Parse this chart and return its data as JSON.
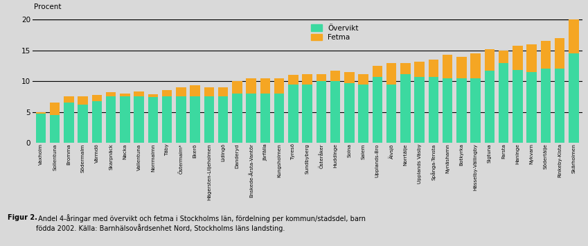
{
  "categories": [
    "Vaxholm",
    "Sollentuna",
    "Bromma",
    "Södermalm",
    "Värmdö",
    "Skarpnäck",
    "Nacka",
    "Vallentuna",
    "Norrmalmn",
    "Täby",
    "Östermalm*",
    "Ekerö",
    "Hägersten-Liljeholmen",
    "Lidingö",
    "Danderyd",
    "Enskede-Årsta-Vantör",
    "Järfälla",
    "Kungsholmen",
    "Tyresö",
    "Sundbyberg",
    "Österåker",
    "Huddinge",
    "Solna",
    "Salem",
    "Upplands-Bro",
    "Älvsjö",
    "Norrtälje",
    "Upplands Väsby",
    "Spånga-Tensta",
    "Nynäshamn",
    "Botkyrka",
    "Hässelby-Vällingby",
    "Sigtuna",
    "Farsta",
    "Haninge",
    "Nykvarn",
    "Södertälje",
    "Rinkeby-Kista",
    "Skärholmen"
  ],
  "overvikt": [
    4.7,
    4.5,
    6.5,
    6.2,
    6.8,
    7.5,
    7.5,
    7.5,
    7.4,
    7.5,
    7.5,
    7.5,
    7.5,
    7.5,
    8.0,
    8.0,
    8.0,
    8.0,
    9.5,
    9.5,
    10.0,
    10.0,
    9.7,
    9.5,
    10.7,
    9.5,
    11.2,
    10.7,
    10.7,
    10.5,
    10.5,
    10.5,
    11.7,
    13.0,
    11.8,
    11.5,
    12.0,
    12.0,
    14.5
  ],
  "fetma": [
    0.3,
    2.0,
    1.0,
    1.3,
    1.0,
    0.7,
    0.5,
    0.8,
    0.5,
    1.0,
    1.5,
    1.8,
    1.5,
    1.5,
    2.0,
    2.5,
    2.5,
    2.5,
    1.5,
    1.7,
    1.2,
    1.7,
    1.8,
    1.7,
    1.8,
    3.5,
    1.8,
    2.5,
    2.8,
    3.8,
    3.5,
    4.0,
    3.5,
    2.0,
    4.0,
    4.5,
    4.5,
    5.0,
    5.5
  ],
  "overvikt_color": "#3cd9a0",
  "fetma_color": "#f5a623",
  "background_color": "#d9d9d9",
  "procent_label": "Procent",
  "ylim": [
    0,
    20
  ],
  "yticks": [
    0,
    5,
    10,
    15,
    20
  ],
  "solid_lines": [
    5,
    10,
    15,
    20
  ],
  "legend_overvikt": "Övervikt",
  "legend_fetma": "Fetma",
  "caption_bold": "Figur 2.",
  "caption_normal": " Andel 4-åringar med övervikt och fetma i Stockholms län, fördelning per kommun/stadsdel, barn\nfödda 2002. Källa: Barnhälsovårdsenhet Nord, Stockholms läns landsting."
}
